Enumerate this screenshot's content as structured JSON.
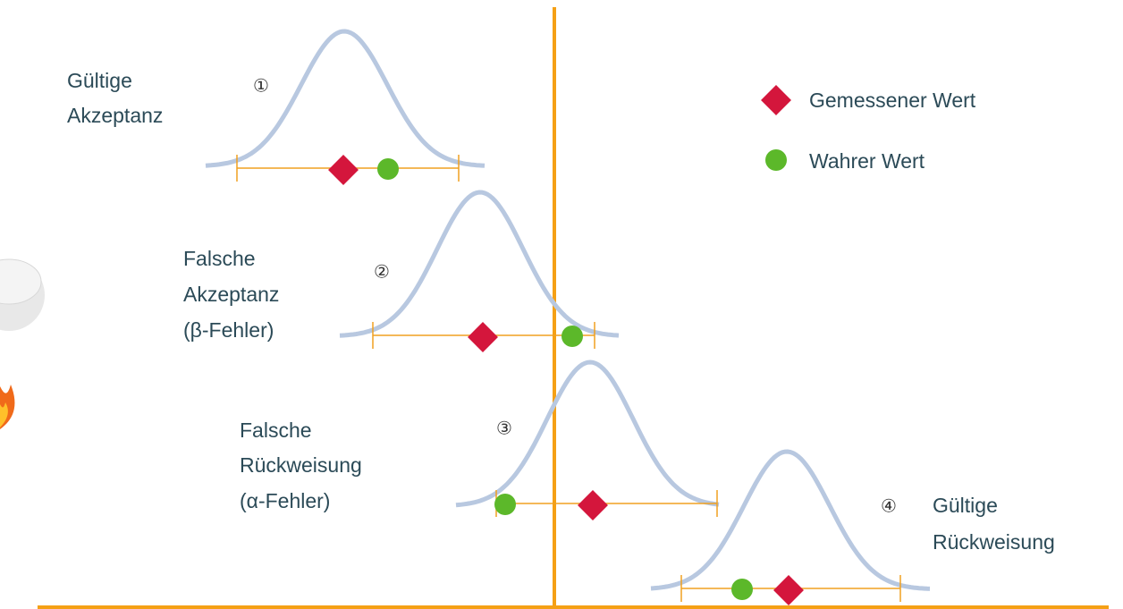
{
  "legend": [
    {
      "label": "Gemessener Wert"
    },
    {
      "label": "Wahrer Wert"
    }
  ],
  "cases": [
    {
      "number": "①",
      "lines": [
        "Gültige",
        "Akzeptanz"
      ]
    },
    {
      "number": "②",
      "lines": [
        "Falsche",
        "Akzeptanz",
        "(β-Fehler)"
      ]
    },
    {
      "number": "③",
      "lines": [
        "Falsche",
        "Rückweisung",
        "(α-Fehler)"
      ]
    },
    {
      "number": "④",
      "lines": [
        "Gültige",
        "Rückweisung"
      ]
    }
  ]
}
